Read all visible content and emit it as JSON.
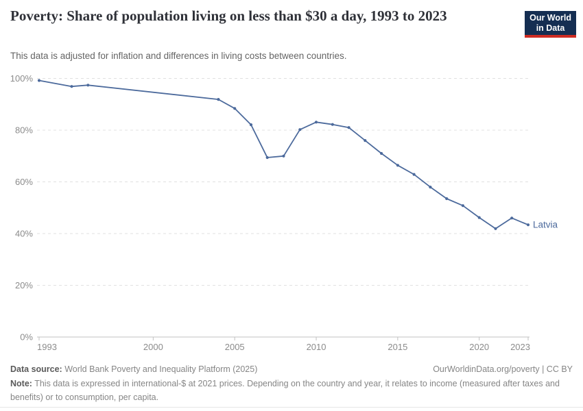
{
  "header": {
    "title": "Poverty: Share of population living on less than $30 a day, 1993 to 2023",
    "subtitle": "This data is adjusted for inflation and differences in living costs between countries.",
    "logo": {
      "line1": "Our World",
      "line2": "in Data",
      "bg_color": "#152e52",
      "accent_color": "#cf2c23"
    }
  },
  "chart_data": {
    "type": "line",
    "title": "Poverty: Share of population living on less than $30 a day, 1993 to 2023",
    "xlabel": "",
    "ylabel": "",
    "xlim": [
      1993,
      2023
    ],
    "ylim": [
      0,
      100
    ],
    "xticks": [
      1993,
      2000,
      2005,
      2010,
      2015,
      2020,
      2023
    ],
    "yticks": [
      0,
      20,
      40,
      60,
      80,
      100
    ],
    "ytick_suffix": "%",
    "grid": "horizontal-dashed",
    "legend": "end-of-line-label",
    "series": [
      {
        "name": "Latvia",
        "color": "#4C6A9C",
        "years": [
          1993,
          1995,
          1996,
          2004,
          2005,
          2006,
          2007,
          2008,
          2009,
          2010,
          2011,
          2012,
          2013,
          2014,
          2015,
          2016,
          2017,
          2018,
          2019,
          2020,
          2021,
          2022,
          2023
        ],
        "values": [
          99.2,
          96.9,
          97.4,
          91.9,
          88.4,
          82.1,
          69.4,
          70.0,
          80.2,
          83.1,
          82.2,
          81.0,
          76.0,
          71.0,
          66.4,
          62.9,
          58.0,
          53.5,
          50.8,
          46.2,
          41.9,
          46.0,
          43.4
        ]
      }
    ],
    "end_label": "Latvia",
    "colors": {
      "grid": "#e0e0e0",
      "axis": "#c2c2c2",
      "tick_label": "#8b8b8b"
    }
  },
  "footer": {
    "data_source_label": "Data source:",
    "data_source_value": "World Bank Poverty and Inequality Platform (2025)",
    "link": "OurWorldinData.org/poverty | CC BY",
    "note_label": "Note:",
    "note_value": "This data is expressed in international-$ at 2021 prices. Depending on the country and year, it relates to income (measured after taxes and benefits) or to consumption, per capita."
  }
}
